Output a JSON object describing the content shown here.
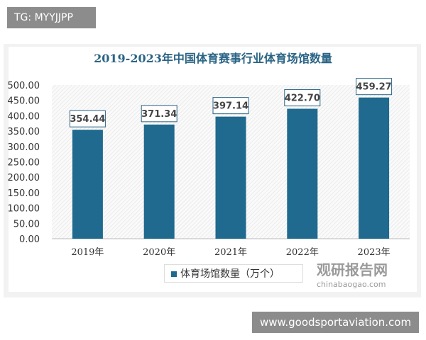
{
  "tag": "TG: MYYJJPP",
  "site": "www.goodsportaviation.com",
  "watermark": {
    "cn": "观研报告网",
    "en": "chinabaogao.com"
  },
  "chart_data": {
    "type": "bar",
    "title": "2019-2023年中国体育赛事行业体育场馆数量",
    "categories": [
      "2019年",
      "2020年",
      "2021年",
      "2022年",
      "2023年"
    ],
    "series": [
      {
        "name": "体育场馆数量（万个）",
        "values": [
          354.44,
          371.34,
          397.14,
          422.7,
          459.27
        ],
        "labels": [
          "354.44",
          "371.34",
          "397.14",
          "422.70",
          "459.27"
        ],
        "color": "#1f6a8e"
      }
    ],
    "ylim": [
      0,
      500
    ],
    "yticks": [
      "0.00",
      "50.00",
      "100.00",
      "150.00",
      "200.00",
      "250.00",
      "300.00",
      "350.00",
      "400.00",
      "450.00",
      "500.00"
    ],
    "legend": "bottom",
    "grid": false
  }
}
